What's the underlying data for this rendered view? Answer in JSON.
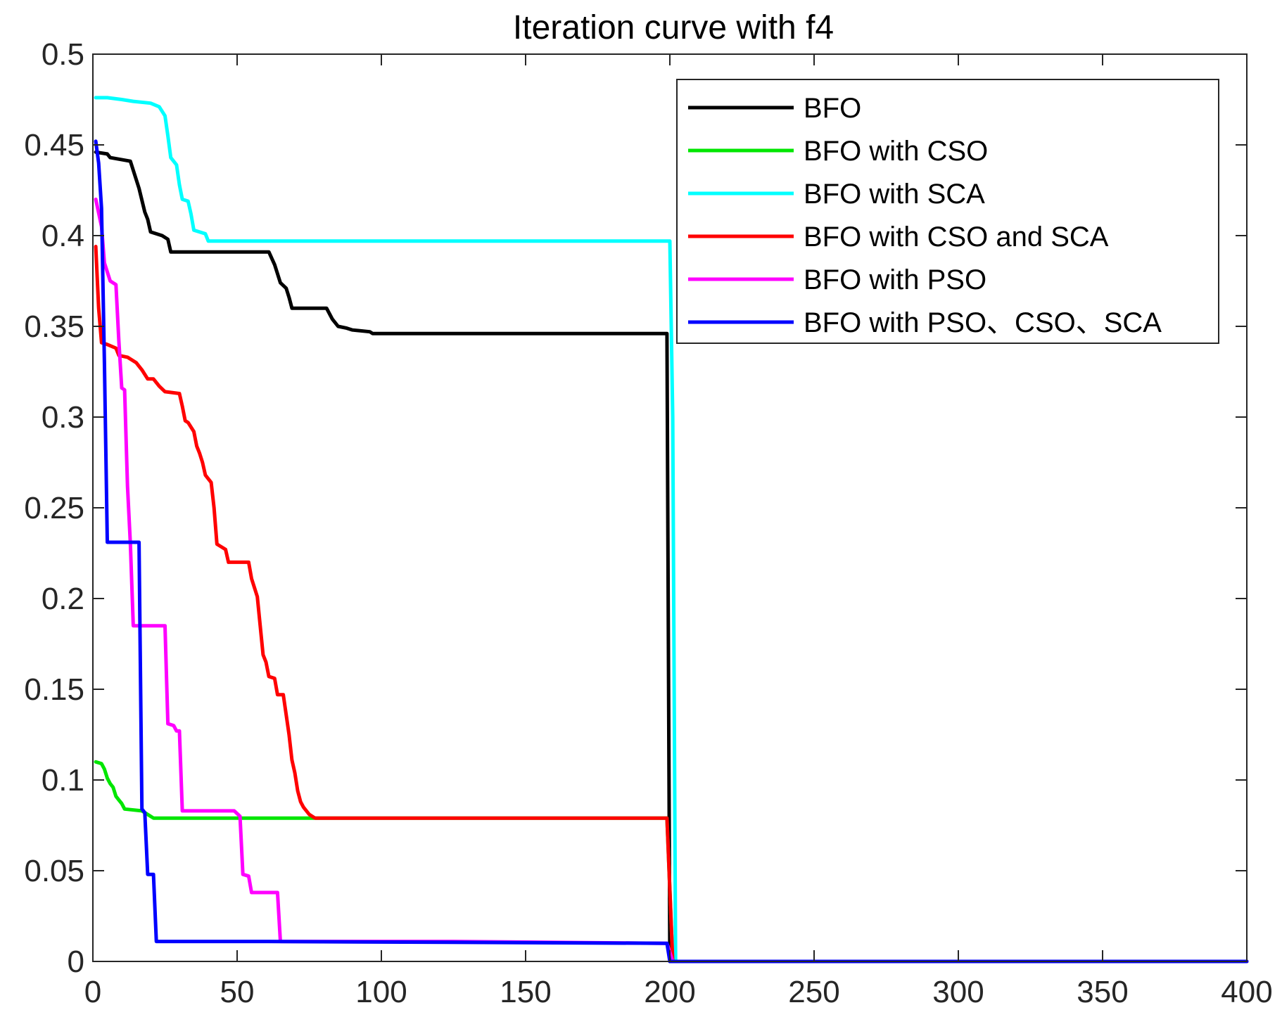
{
  "chart_data": {
    "type": "line",
    "title": "Iteration curve with f4",
    "xlabel": "",
    "ylabel": "",
    "xlim": [
      0,
      400
    ],
    "ylim": [
      0,
      0.5
    ],
    "xticks": [
      0,
      50,
      100,
      150,
      200,
      250,
      300,
      350,
      400
    ],
    "xtick_labels": [
      "0",
      "50",
      "100",
      "150",
      "200",
      "250",
      "300",
      "350",
      "400"
    ],
    "yticks": [
      0,
      0.05,
      0.1,
      0.15,
      0.2,
      0.25,
      0.3,
      0.35,
      0.4,
      0.45,
      0.5
    ],
    "ytick_labels": [
      "0",
      "0.05",
      "0.1",
      "0.15",
      "0.2",
      "0.25",
      "0.3",
      "0.35",
      "0.4",
      "0.45",
      "0.5"
    ],
    "grid": false,
    "legend_position": "top-right",
    "series": [
      {
        "name": "BFO",
        "color": "#000000",
        "points": [
          [
            1,
            0.446
          ],
          [
            5,
            0.445
          ],
          [
            6,
            0.443
          ],
          [
            13,
            0.441
          ],
          [
            14,
            0.436
          ],
          [
            16,
            0.426
          ],
          [
            18,
            0.413
          ],
          [
            19,
            0.409
          ],
          [
            20,
            0.402
          ],
          [
            24,
            0.4
          ],
          [
            26,
            0.398
          ],
          [
            27,
            0.391
          ],
          [
            61,
            0.391
          ],
          [
            63,
            0.384
          ],
          [
            65,
            0.374
          ],
          [
            67,
            0.371
          ],
          [
            68,
            0.366
          ],
          [
            69,
            0.36
          ],
          [
            81,
            0.36
          ],
          [
            83,
            0.354
          ],
          [
            85,
            0.35
          ],
          [
            88,
            0.349
          ],
          [
            90,
            0.348
          ],
          [
            96,
            0.347
          ],
          [
            97,
            0.346
          ],
          [
            199,
            0.346
          ],
          [
            200,
            0
          ],
          [
            400,
            0
          ]
        ]
      },
      {
        "name": "BFO with CSO",
        "color": "#00e600",
        "points": [
          [
            1,
            0.11
          ],
          [
            3,
            0.109
          ],
          [
            4,
            0.106
          ],
          [
            5,
            0.101
          ],
          [
            6,
            0.098
          ],
          [
            7,
            0.096
          ],
          [
            8,
            0.091
          ],
          [
            9,
            0.089
          ],
          [
            10,
            0.087
          ],
          [
            11,
            0.084
          ],
          [
            17,
            0.083
          ],
          [
            19,
            0.081
          ],
          [
            20,
            0.08
          ],
          [
            21,
            0.079
          ],
          [
            75,
            0.079
          ],
          [
            199,
            0.079
          ],
          [
            201,
            0
          ],
          [
            400,
            0
          ]
        ]
      },
      {
        "name": "BFO with SCA",
        "color": "#00ffff",
        "points": [
          [
            1,
            0.476
          ],
          [
            5,
            0.476
          ],
          [
            10,
            0.475
          ],
          [
            14,
            0.474
          ],
          [
            20,
            0.473
          ],
          [
            23,
            0.471
          ],
          [
            25,
            0.466
          ],
          [
            26,
            0.455
          ],
          [
            27,
            0.443
          ],
          [
            29,
            0.439
          ],
          [
            30,
            0.428
          ],
          [
            31,
            0.42
          ],
          [
            33,
            0.419
          ],
          [
            34,
            0.412
          ],
          [
            35,
            0.403
          ],
          [
            39,
            0.401
          ],
          [
            40,
            0.397
          ],
          [
            200,
            0.397
          ],
          [
            201,
            0.3
          ],
          [
            202,
            0
          ],
          [
            400,
            0
          ]
        ]
      },
      {
        "name": "BFO with CSO and SCA",
        "color": "#ff0000",
        "points": [
          [
            1,
            0.394
          ],
          [
            2,
            0.36
          ],
          [
            3,
            0.341
          ],
          [
            5,
            0.34
          ],
          [
            8,
            0.338
          ],
          [
            9,
            0.334
          ],
          [
            12,
            0.333
          ],
          [
            15,
            0.33
          ],
          [
            17,
            0.326
          ],
          [
            19,
            0.321
          ],
          [
            21,
            0.321
          ],
          [
            23,
            0.317
          ],
          [
            25,
            0.314
          ],
          [
            30,
            0.313
          ],
          [
            31,
            0.306
          ],
          [
            32,
            0.298
          ],
          [
            33,
            0.297
          ],
          [
            35,
            0.292
          ],
          [
            36,
            0.284
          ],
          [
            37,
            0.28
          ],
          [
            38,
            0.275
          ],
          [
            39,
            0.268
          ],
          [
            41,
            0.264
          ],
          [
            42,
            0.25
          ],
          [
            43,
            0.23
          ],
          [
            44,
            0.229
          ],
          [
            46,
            0.227
          ],
          [
            47,
            0.22
          ],
          [
            54,
            0.22
          ],
          [
            55,
            0.211
          ],
          [
            56,
            0.206
          ],
          [
            57,
            0.201
          ],
          [
            58,
            0.185
          ],
          [
            59,
            0.169
          ],
          [
            60,
            0.165
          ],
          [
            61,
            0.157
          ],
          [
            63,
            0.156
          ],
          [
            64,
            0.147
          ],
          [
            66,
            0.147
          ],
          [
            68,
            0.125
          ],
          [
            69,
            0.111
          ],
          [
            70,
            0.104
          ],
          [
            71,
            0.094
          ],
          [
            72,
            0.088
          ],
          [
            73,
            0.085
          ],
          [
            75,
            0.081
          ],
          [
            77,
            0.079
          ],
          [
            199,
            0.079
          ],
          [
            201,
            0
          ],
          [
            400,
            0
          ]
        ]
      },
      {
        "name": "BFO with PSO",
        "color": "#ff00ff",
        "points": [
          [
            1,
            0.42
          ],
          [
            3,
            0.405
          ],
          [
            4,
            0.385
          ],
          [
            6,
            0.375
          ],
          [
            7,
            0.374
          ],
          [
            8,
            0.373
          ],
          [
            9,
            0.342
          ],
          [
            10,
            0.316
          ],
          [
            11,
            0.315
          ],
          [
            12,
            0.262
          ],
          [
            13,
            0.23
          ],
          [
            14,
            0.185
          ],
          [
            25,
            0.185
          ],
          [
            26,
            0.131
          ],
          [
            28,
            0.13
          ],
          [
            29,
            0.127
          ],
          [
            30,
            0.127
          ],
          [
            31,
            0.083
          ],
          [
            49,
            0.083
          ],
          [
            51,
            0.08
          ],
          [
            52,
            0.048
          ],
          [
            54,
            0.047
          ],
          [
            55,
            0.038
          ],
          [
            64,
            0.038
          ],
          [
            65,
            0.011
          ],
          [
            125,
            0.011
          ],
          [
            199,
            0.01
          ],
          [
            201,
            0
          ],
          [
            400,
            0
          ]
        ]
      },
      {
        "name": "BFO with PSO、CSO、SCA",
        "color": "#0000ff",
        "points": [
          [
            1,
            0.452
          ],
          [
            2,
            0.44
          ],
          [
            3,
            0.415
          ],
          [
            4,
            0.33
          ],
          [
            5,
            0.231
          ],
          [
            16,
            0.231
          ],
          [
            17,
            0.084
          ],
          [
            18,
            0.082
          ],
          [
            19,
            0.048
          ],
          [
            21,
            0.048
          ],
          [
            22,
            0.011
          ],
          [
            58,
            0.011
          ],
          [
            199,
            0.01
          ],
          [
            200,
            0
          ],
          [
            400,
            0
          ]
        ]
      }
    ]
  }
}
